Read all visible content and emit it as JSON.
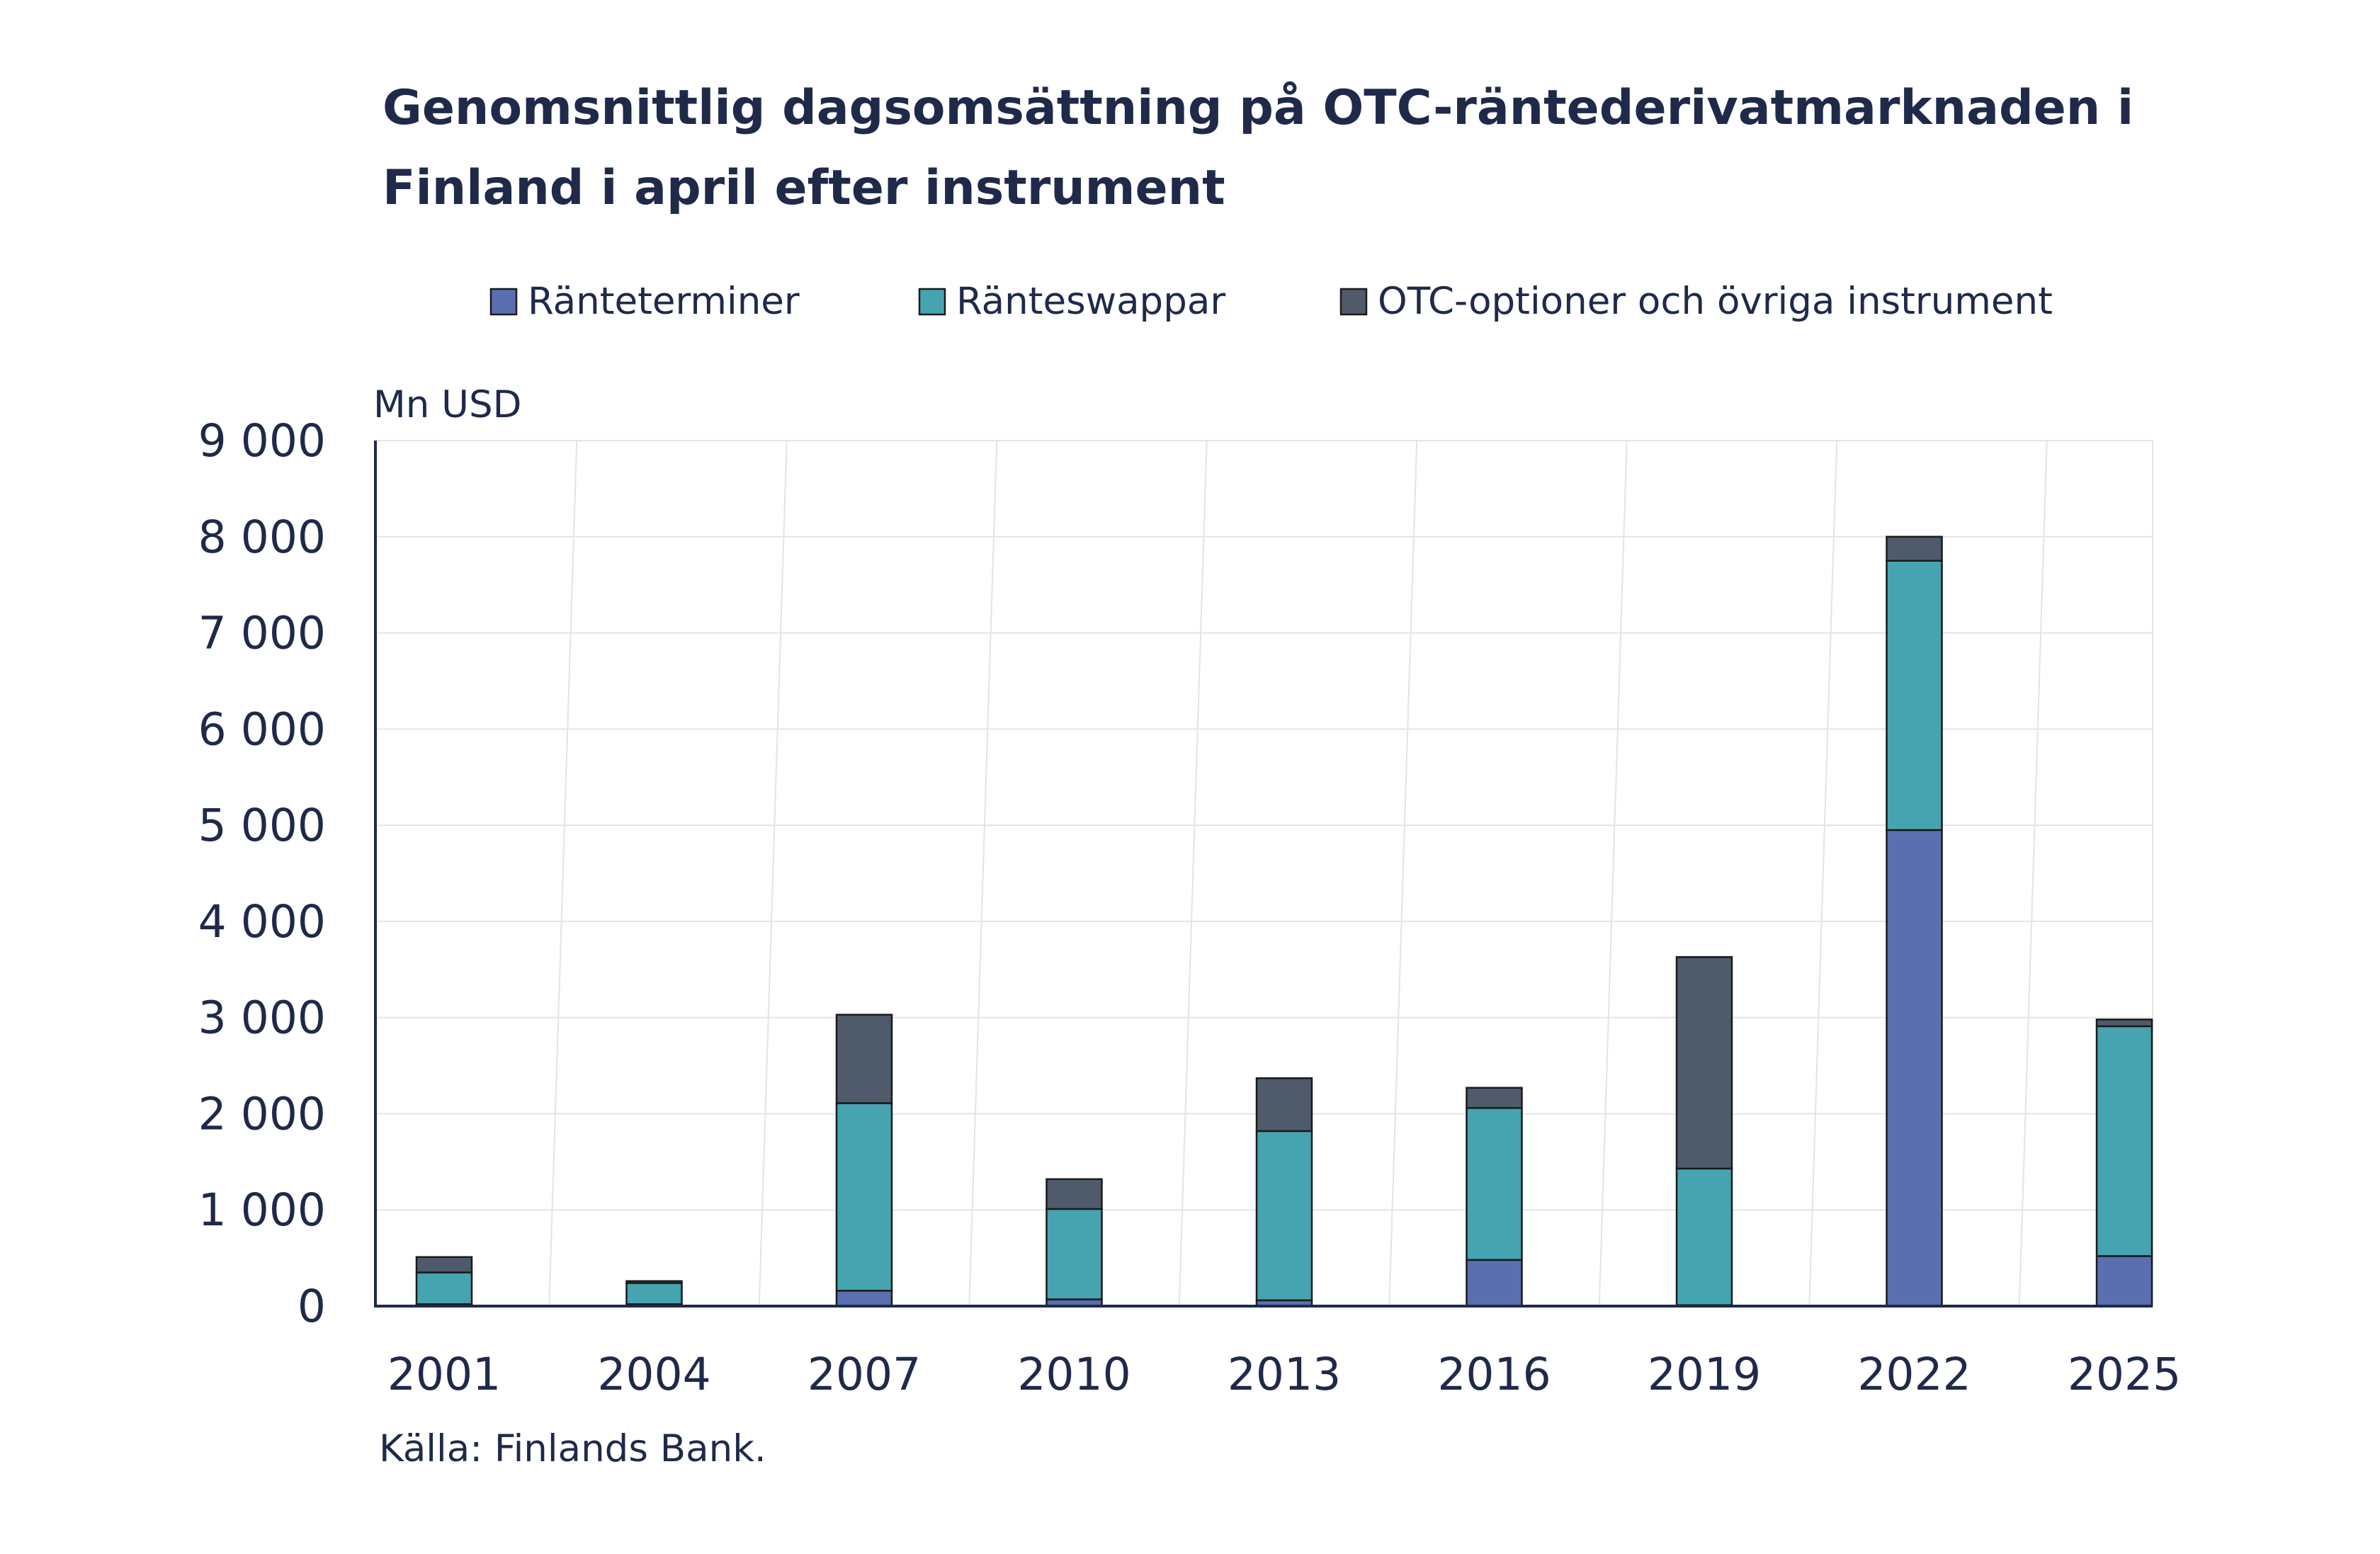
{
  "chart_data": {
    "type": "bar",
    "stacked": true,
    "title": "Genomsnittlig dagsomsättning på OTC-räntederivatmarknaden i Finland i april efter instrument",
    "title_lines": [
      "Genomsnittlig dagsomsättning på OTC-räntederivatmarknaden i",
      "Finland i april efter instrument"
    ],
    "ylabel": "Mn USD",
    "xlabel": "",
    "ylim": [
      0,
      9000
    ],
    "yticks": [
      0,
      1000,
      2000,
      3000,
      4000,
      5000,
      6000,
      7000,
      8000,
      9000
    ],
    "ytick_labels": [
      "0",
      "1 000",
      "2 000",
      "3 000",
      "4 000",
      "5 000",
      "6 000",
      "7 000",
      "8 000",
      "9 000"
    ],
    "categories": [
      "2001",
      "2004",
      "2007",
      "2010",
      "2013",
      "2016",
      "2019",
      "2022",
      "2025"
    ],
    "series": [
      {
        "name": "Ränteterminer",
        "color": "#5b6fb0",
        "values": [
          20,
          20,
          160,
          70,
          60,
          480,
          10,
          4950,
          520
        ]
      },
      {
        "name": "Ränteswappar",
        "color": "#46a3b0",
        "values": [
          330,
          220,
          1950,
          940,
          1760,
          1580,
          1420,
          2800,
          2390
        ]
      },
      {
        "name": "OTC-optioner och övriga instrument",
        "color": "#4f5b6b",
        "values": [
          160,
          20,
          920,
          310,
          550,
          210,
          2200,
          250,
          70
        ]
      }
    ],
    "legend_position": "top",
    "grid": true,
    "source": "Källa: Finlands Bank."
  }
}
